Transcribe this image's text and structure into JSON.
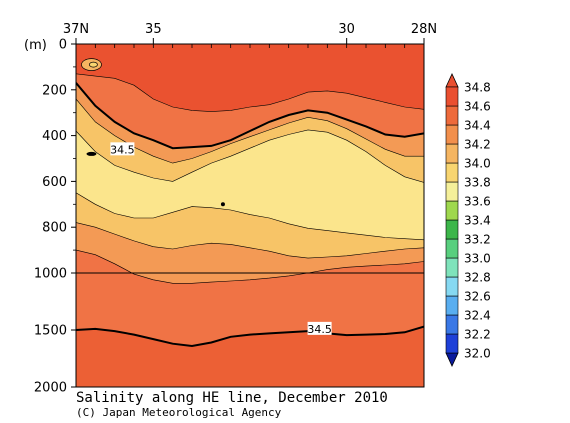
{
  "chart_data": {
    "type": "heatmap",
    "title": "Salinity along HE line, December 2010",
    "credit": "(C) Japan Meteorological Agency",
    "ylabel": "(m)",
    "x_tick_labels": [
      "37N",
      "35",
      "30",
      "28N"
    ],
    "x_tick_values": [
      37,
      35,
      30,
      28
    ],
    "xlim": [
      37,
      28
    ],
    "y_tick_labels": [
      "0",
      "200",
      "400",
      "600",
      "800",
      "1000",
      "1500",
      "2000"
    ],
    "y_tick_values": [
      0,
      200,
      400,
      600,
      800,
      1000,
      1500,
      2000
    ],
    "y_scale": "piecewise: 0-1000 m expanded, 1000-2000 m compressed",
    "depth_break_line": 1000,
    "colorbar": {
      "levels": [
        "32.0",
        "32.2",
        "32.4",
        "32.6",
        "32.8",
        "33.0",
        "33.2",
        "33.4",
        "33.6",
        "33.8",
        "34.0",
        "34.2",
        "34.4",
        "34.6",
        "34.8"
      ],
      "colors": [
        "#0a1a9c",
        "#1e40d8",
        "#3a78e6",
        "#59aef0",
        "#86d9f2",
        "#7fe3bb",
        "#58cf7e",
        "#3cb64a",
        "#9fd84e",
        "#f5f09a",
        "#f8d570",
        "#f5b561",
        "#f28f4c",
        "#ee6a3b",
        "#ea4f30"
      ]
    },
    "contour_labels": [
      {
        "text": "34.5",
        "x": 35.8,
        "depth": 460
      },
      {
        "text": "34.5",
        "x": 30.7,
        "depth": 1490
      }
    ],
    "sections": {
      "x": [
        37,
        36.5,
        36,
        35.5,
        35,
        34.5,
        34,
        33.5,
        33,
        32.5,
        32,
        31.5,
        31,
        30.5,
        30,
        29.5,
        29,
        28.5,
        28
      ],
      "layers": [
        {
          "salinity": 34.7,
          "depth": [
            130,
            140,
            150,
            180,
            240,
            275,
            290,
            295,
            290,
            275,
            265,
            240,
            210,
            205,
            215,
            235,
            255,
            275,
            285
          ]
        },
        {
          "salinity": 34.5,
          "depth": [
            170,
            270,
            340,
            390,
            420,
            455,
            450,
            445,
            420,
            380,
            340,
            310,
            290,
            300,
            330,
            360,
            395,
            405,
            390
          ]
        },
        {
          "salinity": 34.3,
          "depth": [
            240,
            340,
            400,
            450,
            490,
            520,
            500,
            470,
            435,
            405,
            375,
            345,
            320,
            335,
            370,
            415,
            460,
            490,
            490
          ]
        },
        {
          "salinity": 34.1,
          "depth": [
            380,
            470,
            530,
            560,
            585,
            600,
            560,
            520,
            490,
            455,
            420,
            395,
            375,
            385,
            420,
            470,
            530,
            580,
            605
          ]
        },
        {
          "salinity": 33.9,
          "depth": [
            650,
            700,
            740,
            760,
            760,
            735,
            710,
            715,
            725,
            745,
            760,
            785,
            805,
            815,
            825,
            835,
            845,
            850,
            855
          ]
        },
        {
          "salinity": 34.1,
          "depth": [
            780,
            800,
            830,
            860,
            885,
            895,
            880,
            870,
            875,
            890,
            905,
            925,
            935,
            930,
            925,
            915,
            905,
            895,
            890
          ]
        },
        {
          "salinity": 34.3,
          "depth": [
            900,
            920,
            960,
            1010,
            1060,
            1090,
            1090,
            1080,
            1070,
            1060,
            1045,
            1025,
            1000,
            985,
            975,
            970,
            965,
            960,
            950
          ]
        },
        {
          "salinity": 34.5,
          "depth": [
            1500,
            1490,
            1510,
            1540,
            1580,
            1620,
            1640,
            1610,
            1560,
            1540,
            1530,
            1520,
            1510,
            1530,
            1545,
            1540,
            1535,
            1520,
            1470
          ]
        },
        {
          "salinity": 34.7,
          "depth": [
            2000,
            2000,
            2000,
            2000,
            2000,
            2000,
            2000,
            2000,
            2000,
            2000,
            2000,
            2000,
            2000,
            2000,
            2000,
            2000,
            2000,
            2000,
            2000
          ]
        }
      ]
    },
    "band_fills": [
      "#ea5230",
      "#f07345",
      "#f39a55",
      "#f7c467",
      "#fbe58c",
      "#f7c467",
      "#f39a55",
      "#f07345",
      "#ec6035"
    ]
  }
}
